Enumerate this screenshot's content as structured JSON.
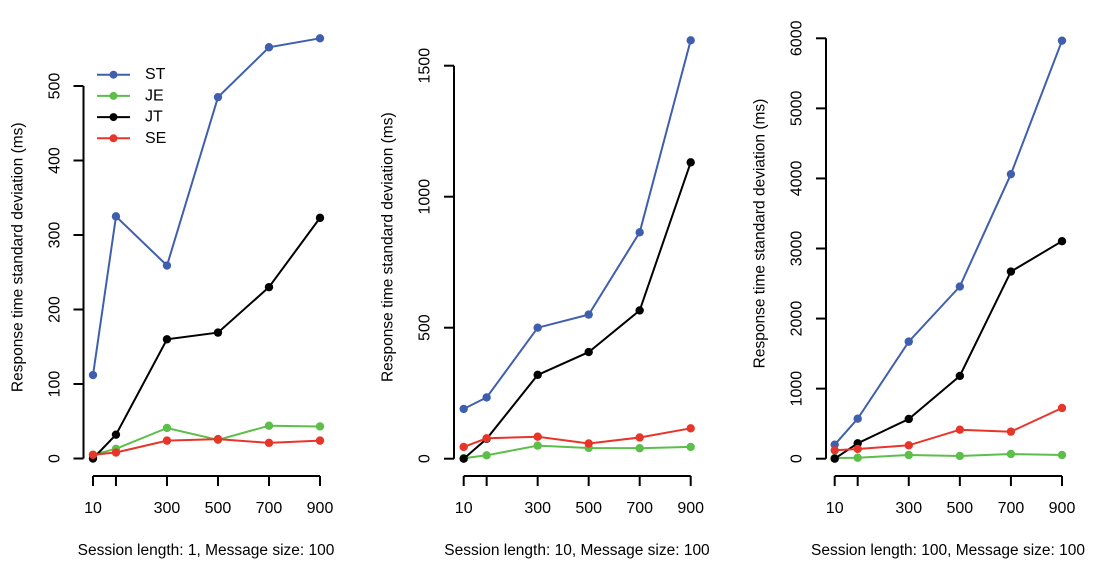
{
  "chart_data": [
    {
      "type": "line",
      "title": "",
      "xlabel": "Session length: 1, Message size: 100",
      "ylabel": "Response time standard deviation (ms)",
      "x": [
        10,
        100,
        300,
        500,
        700,
        900
      ],
      "xticks": [
        10,
        100,
        300,
        500,
        700,
        900
      ],
      "xtick_labels": [
        "10",
        "",
        "300",
        "500",
        "700",
        "900"
      ],
      "xlim": [
        10,
        900
      ],
      "yticks": [
        0,
        100,
        200,
        300,
        400,
        500
      ],
      "ylim": [
        0,
        500
      ],
      "grid": false,
      "legend": {
        "placement": "top-left",
        "entries": [
          "ST",
          "JE",
          "JT",
          "SE"
        ]
      },
      "series": [
        {
          "name": "ST",
          "color": "#3f5fae",
          "values": [
            112,
            325,
            259,
            485,
            552,
            564
          ]
        },
        {
          "name": "JE",
          "color": "#5cbf4a",
          "values": [
            5,
            13,
            41,
            25,
            44,
            43
          ]
        },
        {
          "name": "JT",
          "color": "#000000",
          "values": [
            0,
            32,
            160,
            169,
            230,
            323
          ]
        },
        {
          "name": "SE",
          "color": "#e8352a",
          "values": [
            5,
            8,
            24,
            26,
            21,
            24
          ]
        }
      ]
    },
    {
      "type": "line",
      "title": "",
      "xlabel": "Session length: 10, Message size: 100",
      "ylabel": "Response time standard deviation (ms)",
      "x": [
        10,
        100,
        300,
        500,
        700,
        900
      ],
      "xticks": [
        10,
        100,
        300,
        500,
        700,
        900
      ],
      "xtick_labels": [
        "10",
        "",
        "300",
        "500",
        "700",
        "900"
      ],
      "xlim": [
        10,
        900
      ],
      "yticks": [
        0,
        500,
        1000,
        1500
      ],
      "ylim": [
        0,
        1500
      ],
      "grid": false,
      "legend": null,
      "series": [
        {
          "name": "ST",
          "color": "#3f5fae",
          "values": [
            190,
            234,
            500,
            550,
            864,
            1597
          ]
        },
        {
          "name": "JE",
          "color": "#5cbf4a",
          "values": [
            2,
            13,
            50,
            41,
            40,
            45
          ]
        },
        {
          "name": "JT",
          "color": "#000000",
          "values": [
            0,
            76,
            320,
            407,
            566,
            1131
          ]
        },
        {
          "name": "SE",
          "color": "#e8352a",
          "values": [
            45,
            78,
            84,
            58,
            81,
            116
          ]
        }
      ]
    },
    {
      "type": "line",
      "title": "",
      "xlabel": "Session length: 100, Message size: 100",
      "ylabel": "Response time standard deviation (ms)",
      "x": [
        10,
        100,
        300,
        500,
        700,
        900
      ],
      "xticks": [
        10,
        100,
        300,
        500,
        700,
        900
      ],
      "xtick_labels": [
        "10",
        "",
        "300",
        "500",
        "700",
        "900"
      ],
      "xlim": [
        10,
        900
      ],
      "yticks": [
        0,
        1000,
        2000,
        3000,
        4000,
        5000,
        6000
      ],
      "ylim": [
        0,
        6000
      ],
      "grid": false,
      "legend": null,
      "series": [
        {
          "name": "ST",
          "color": "#3f5fae",
          "values": [
            200,
            571,
            1671,
            2457,
            4061,
            5966
          ]
        },
        {
          "name": "JE",
          "color": "#5cbf4a",
          "values": [
            10,
            14,
            53,
            39,
            67,
            53
          ]
        },
        {
          "name": "JT",
          "color": "#000000",
          "values": [
            0,
            220,
            567,
            1181,
            2671,
            3104
          ]
        },
        {
          "name": "SE",
          "color": "#e8352a",
          "values": [
            120,
            139,
            191,
            414,
            386,
            724
          ]
        }
      ]
    }
  ]
}
